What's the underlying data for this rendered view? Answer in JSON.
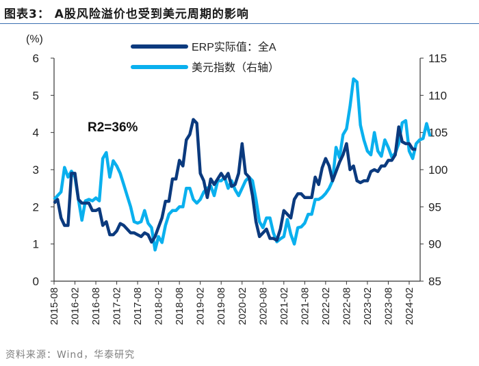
{
  "title": "图表3：  A股风险溢价也受到美元周期的影响",
  "source": "资料来源：Wind，华泰研究",
  "chart_data": {
    "type": "line",
    "title": "",
    "ylabel_left": "(%)",
    "ylim_left": [
      0,
      6
    ],
    "yticks_left": [
      "0",
      "1",
      "2",
      "3",
      "4",
      "5",
      "6"
    ],
    "ylim_right": [
      85,
      115
    ],
    "yticks_right": [
      "85",
      "90",
      "95",
      "100",
      "105",
      "110",
      "115"
    ],
    "annotation": "R2=36%",
    "x_start": "2015-08",
    "x_frequency": "monthly",
    "xticks": [
      "2015-08",
      "2016-02",
      "2016-08",
      "2017-02",
      "2017-08",
      "2018-02",
      "2018-08",
      "2019-02",
      "2019-08",
      "2020-02",
      "2020-08",
      "2021-02",
      "2021-08",
      "2022-02",
      "2022-08",
      "2023-02",
      "2023-08",
      "2024-02"
    ],
    "legend_position": "top-center",
    "series": [
      {
        "name": "ERP实际值：全A",
        "axis": "left",
        "color": "#0b3a7e",
        "values": [
          2.1,
          2.2,
          1.7,
          1.5,
          1.5,
          2.9,
          2.9,
          2.2,
          2.1,
          2.1,
          2.1,
          1.9,
          1.9,
          1.95,
          1.5,
          1.6,
          1.25,
          1.25,
          1.35,
          1.55,
          1.5,
          1.4,
          1.3,
          1.3,
          1.25,
          1.2,
          1.3,
          1.25,
          1.05,
          1.2,
          1.45,
          1.7,
          2.15,
          2.15,
          2.75,
          2.75,
          3.25,
          3.1,
          3.8,
          3.95,
          4.35,
          4.25,
          2.9,
          2.7,
          2.25,
          2.75,
          2.6,
          2.75,
          2.9,
          2.75,
          2.9,
          2.55,
          2.6,
          2.9,
          3.7,
          2.9,
          2.8,
          2.3,
          1.6,
          1.2,
          1.3,
          1.4,
          1.15,
          1.15,
          1.1,
          1.4,
          1.9,
          1.8,
          1.7,
          2.2,
          2.35,
          2.35,
          2.25,
          2.25,
          2.25,
          2.8,
          2.6,
          3.05,
          3.3,
          3.1,
          2.7,
          2.95,
          3.2,
          3.4,
          3.7,
          3.0,
          3.1,
          2.7,
          2.65,
          2.7,
          2.7,
          2.95,
          3.0,
          2.95,
          3.1,
          3.1,
          3.25,
          3.25,
          3.4,
          4.15,
          3.75,
          3.7,
          3.7,
          3.55,
          3.55
        ]
      },
      {
        "name": "美元指数（右轴）",
        "axis": "right",
        "color": "#0ab0ee",
        "values": [
          96,
          96.5,
          97,
          100.3,
          99,
          99.8,
          99,
          96,
          93.2,
          95.8,
          96,
          95.8,
          96.2,
          95.8,
          101.5,
          102.3,
          99,
          101.2,
          100.5,
          99.5,
          98,
          96.5,
          95,
          93,
          92.8,
          93,
          94.5,
          92.8,
          92.2,
          89.2,
          91,
          90.2,
          92.5,
          94,
          94.5,
          94.5,
          95,
          95,
          97.5,
          97.5,
          96,
          95.5,
          96,
          97,
          97.5,
          97.8,
          96.5,
          98.5,
          98.5,
          99,
          97.5,
          98.5,
          97.3,
          96.5,
          97.5,
          98.5,
          99,
          98.5,
          96,
          93,
          92.2,
          93.5,
          93.5,
          91.5,
          90.3,
          90.7,
          91,
          93.3,
          91.3,
          90,
          92.2,
          92.3,
          92.8,
          94,
          94,
          96,
          96,
          96.3,
          96.8,
          97.5,
          98.5,
          103,
          101.6,
          104.7,
          105.5,
          108.5,
          112.2,
          111.8,
          106,
          104,
          102.5,
          102,
          105,
          102.5,
          101.8,
          104,
          103,
          101.7,
          102.2,
          103.5,
          106.3,
          106.6,
          102.5,
          101.5,
          103.5,
          104,
          104.2,
          106.2,
          104.5
        ]
      }
    ]
  }
}
